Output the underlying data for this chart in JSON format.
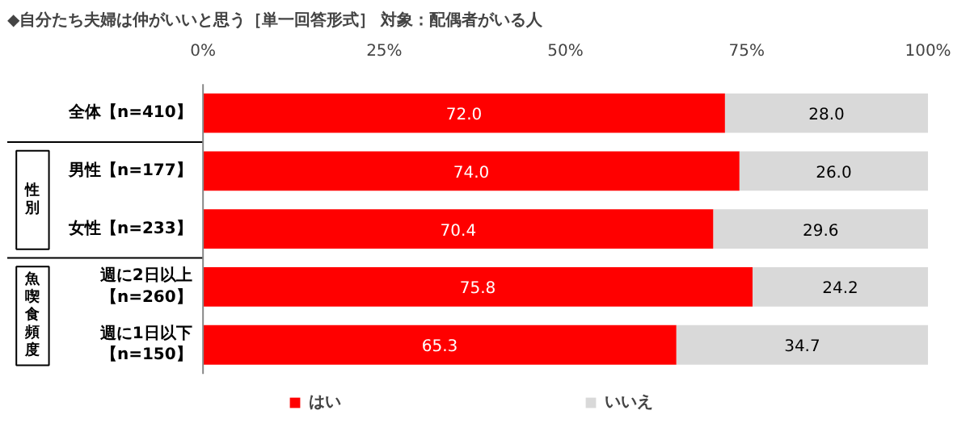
{
  "chart_data": {
    "type": "bar",
    "orientation": "horizontal",
    "stacked": true,
    "title": "◆自分たち夫婦は仲がいいと思う［単一回答形式］ 対象：配偶者がいる人",
    "categories": [
      "全体【n=410】",
      "男性【n=177】",
      "女性【n=233】",
      "週に2日以上【n=260】",
      "週に1日以下【n=150】"
    ],
    "series": [
      {
        "name": "はい",
        "color": "#ff0000",
        "values": [
          72.0,
          74.0,
          70.4,
          75.8,
          65.3
        ],
        "value_labels": [
          "72.0",
          "74.0",
          "70.4",
          "75.8",
          "65.3"
        ]
      },
      {
        "name": "いいえ",
        "color": "#d9d9d9",
        "values": [
          28.0,
          26.0,
          29.6,
          24.2,
          34.7
        ],
        "value_labels": [
          "28.0",
          "26.0",
          "29.6",
          "24.2",
          "34.7"
        ]
      }
    ],
    "xlim": [
      0,
      100
    ],
    "xticks": [
      {
        "value": 0,
        "label": "0%"
      },
      {
        "value": 25,
        "label": "25%"
      },
      {
        "value": 50,
        "label": "50%"
      },
      {
        "value": 75,
        "label": "75%"
      },
      {
        "value": 100,
        "label": "100%"
      }
    ],
    "annotations": [
      "性別",
      "魚喫食頻度"
    ],
    "grid": false,
    "legend": "bottom"
  }
}
